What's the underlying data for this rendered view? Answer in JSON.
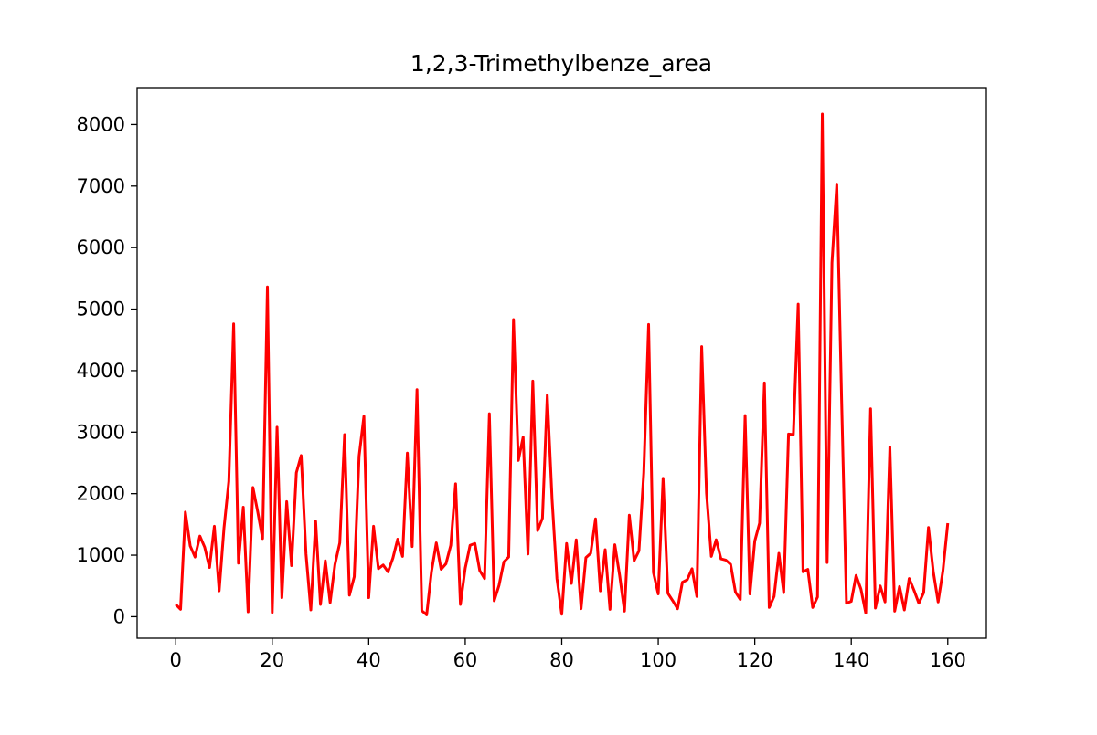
{
  "chart_data": {
    "type": "line",
    "title": "1,2,3-Trimethylbenze_area",
    "xlabel": "",
    "ylabel": "",
    "xlim": [
      -8,
      168
    ],
    "ylim": [
      -350,
      8600
    ],
    "x_ticks": [
      0,
      20,
      40,
      60,
      80,
      100,
      120,
      140,
      160
    ],
    "y_ticks": [
      0,
      1000,
      2000,
      3000,
      4000,
      5000,
      6000,
      7000,
      8000
    ],
    "grid": false,
    "legend": "none",
    "colors": {
      "line": "#ff0000",
      "axes": "#000000",
      "background": "#ffffff"
    },
    "series": [
      {
        "x_start": 0,
        "x_step": 1,
        "values": [
          200,
          120,
          1700,
          1150,
          970,
          1310,
          1130,
          800,
          1470,
          420,
          1440,
          2200,
          4760,
          870,
          1780,
          80,
          2100,
          1700,
          1270,
          5360,
          70,
          3080,
          310,
          1870,
          830,
          2340,
          2620,
          1020,
          110,
          1550,
          200,
          910,
          230,
          850,
          1200,
          2960,
          350,
          650,
          2610,
          3260,
          310,
          1470,
          780,
          840,
          730,
          950,
          1260,
          980,
          2660,
          1140,
          3690,
          100,
          30,
          730,
          1200,
          770,
          860,
          1160,
          2160,
          200,
          790,
          1160,
          1190,
          750,
          620,
          3300,
          260,
          510,
          890,
          970,
          4830,
          2540,
          2920,
          1020,
          3830,
          1400,
          1600,
          3600,
          1900,
          620,
          40,
          1190,
          540,
          1250,
          130,
          960,
          1030,
          1590,
          420,
          1090,
          120,
          1170,
          670,
          90,
          1650,
          910,
          1070,
          2340,
          4750,
          720,
          370,
          2250,
          380,
          260,
          130,
          560,
          600,
          780,
          330,
          4390,
          2010,
          980,
          1250,
          940,
          920,
          850,
          400,
          280,
          3270,
          370,
          1230,
          1520,
          3800,
          150,
          330,
          1030,
          390,
          2970,
          2960,
          5080,
          730,
          770,
          150,
          320,
          8170,
          880,
          5750,
          7030,
          3520,
          220,
          250,
          670,
          450,
          60,
          3380,
          140,
          500,
          240,
          2760,
          90,
          490,
          110,
          620,
          430,
          220,
          390,
          1450,
          730,
          240,
          750,
          1520
        ]
      }
    ]
  }
}
